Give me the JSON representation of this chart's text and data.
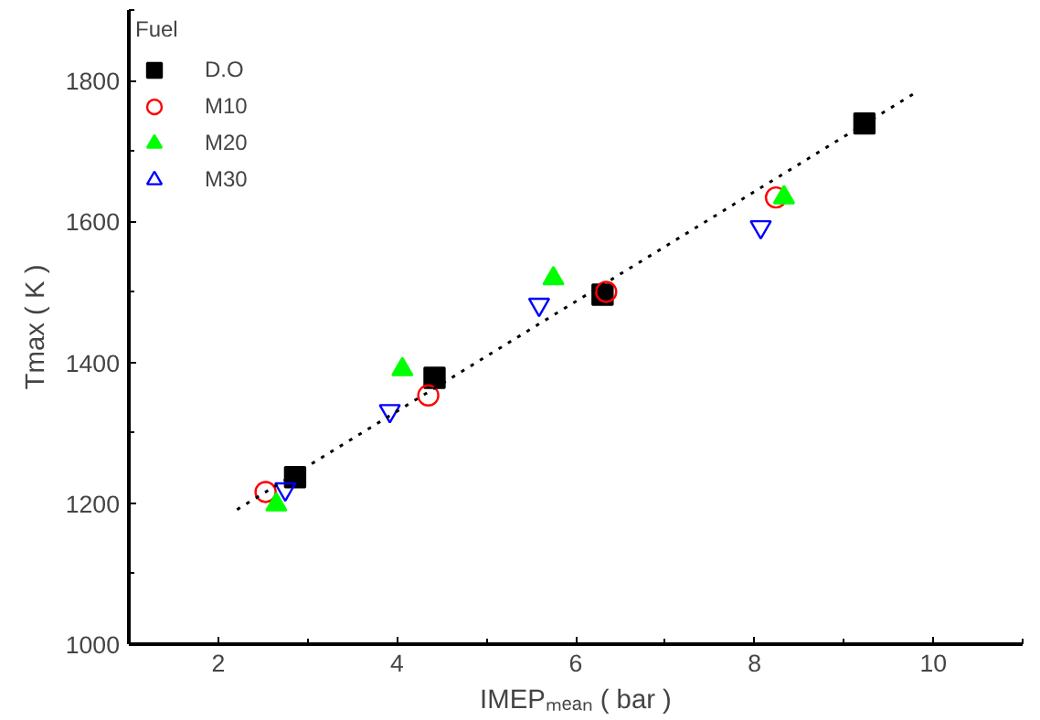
{
  "chart_data": {
    "type": "scatter",
    "xlabel": "IMEPₘₑₐₙ ( bar )",
    "ylabel": "Tmax ( K )",
    "legend_title": "Fuel",
    "legend": "top left",
    "grid": false,
    "xlim": [
      1,
      11
    ],
    "xticks": [
      2,
      4,
      6,
      8,
      10
    ],
    "ylim": [
      1000,
      1900
    ],
    "yticks": [
      1000,
      1200,
      1400,
      1600,
      1800
    ],
    "series": [
      {
        "name": "D.O",
        "color": "#000000",
        "marker": "square",
        "x": [
          2.86,
          4.42,
          6.3,
          9.23
        ],
        "values": [
          1237,
          1378,
          1496,
          1739
        ]
      },
      {
        "name": "M10",
        "color": "#ff0000",
        "marker": "circle",
        "x": [
          2.53,
          4.35,
          6.34,
          8.24
        ],
        "values": [
          1216,
          1353,
          1500,
          1634
        ]
      },
      {
        "name": "M20",
        "color": "#00ff00",
        "marker": "triangle",
        "x": [
          2.65,
          4.06,
          5.75,
          8.33
        ],
        "values": [
          1198,
          1390,
          1519,
          1634
        ]
      },
      {
        "name": "M30",
        "color": "#0000ff",
        "marker": "triangle",
        "x": [
          2.75,
          3.92,
          5.59,
          8.07
        ],
        "values": [
          1220,
          1331,
          1482,
          1592
        ]
      },
      {
        "type": "line",
        "color": "#000000",
        "line_style": "dotted",
        "x": [
          2.21,
          9.83
        ],
        "values": [
          1191,
          1785
        ]
      }
    ]
  }
}
